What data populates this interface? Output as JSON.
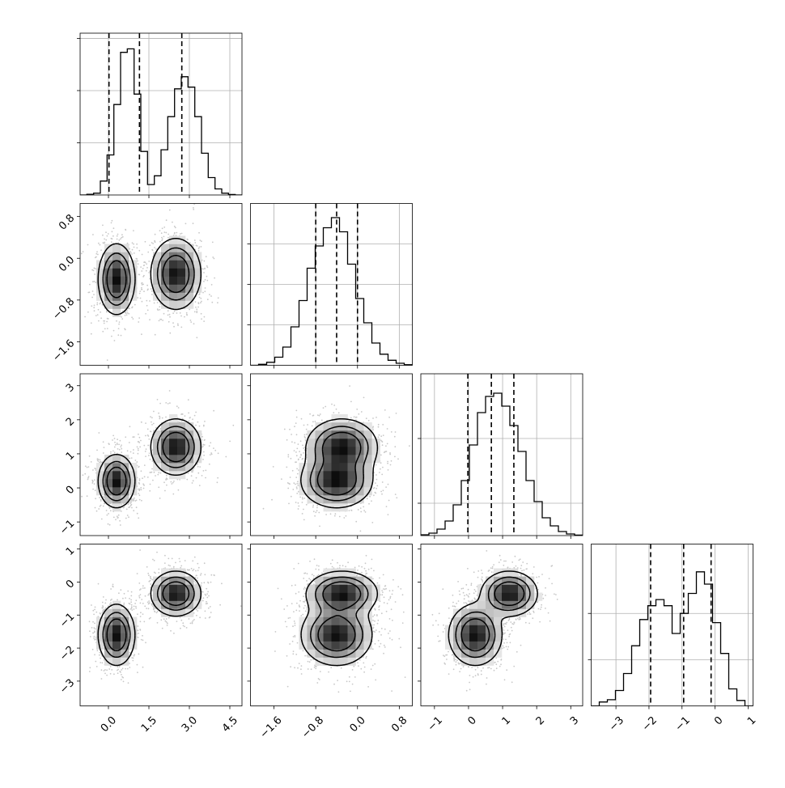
{
  "chart_data": {
    "type": "corner",
    "n_params": 4,
    "params": [
      {
        "range": [
          -1.05,
          4.95
        ],
        "ticks": [
          "0.0",
          "1.5",
          "3.0",
          "4.5"
        ],
        "tick_values": [
          0,
          1.5,
          3,
          4.5
        ],
        "quantile_lines": [
          0.02,
          1.15,
          2.72
        ],
        "hist_ylim": [
          0,
          930
        ],
        "hist_yticks": [
          300,
          600,
          900
        ],
        "hist_counts": [
          0,
          4,
          10,
          80,
          230,
          520,
          820,
          840,
          580,
          250,
          60,
          110,
          260,
          450,
          610,
          680,
          620,
          450,
          240,
          100,
          35,
          10,
          3,
          0
        ]
      },
      {
        "range": [
          -2.05,
          1.05
        ],
        "ticks": [
          "-1.6",
          "-0.8",
          "0.0",
          "0.8"
        ],
        "tick_values": [
          -1.6,
          -0.8,
          0.0,
          0.8
        ],
        "quantile_lines": [
          -0.8,
          -0.4,
          0.0
        ],
        "hist_ylim": [
          0,
          800
        ],
        "hist_yticks": [
          200,
          400,
          600
        ],
        "hist_counts": [
          0,
          5,
          15,
          40,
          90,
          190,
          320,
          480,
          590,
          680,
          730,
          660,
          500,
          330,
          210,
          110,
          55,
          25,
          10,
          3
        ]
      },
      {
        "range": [
          -1.4,
          3.35
        ],
        "ticks": [
          "-1",
          "0",
          "1",
          "2",
          "3"
        ],
        "tick_values": [
          -1,
          0,
          1,
          2,
          3
        ],
        "quantile_lines": [
          -0.02,
          0.67,
          1.33
        ],
        "hist_ylim": [
          0,
          1000
        ],
        "hist_yticks": [
          200,
          600
        ],
        "hist_counts": [
          5,
          15,
          40,
          90,
          190,
          340,
          560,
          760,
          860,
          880,
          800,
          680,
          520,
          340,
          210,
          110,
          60,
          25,
          10,
          3
        ]
      },
      {
        "range": [
          -3.75,
          1.15
        ],
        "ticks": [
          "-3",
          "-2",
          "-1",
          "0",
          "1"
        ],
        "tick_values": [
          -3,
          -2,
          -1,
          0,
          1
        ],
        "quantile_lines": [
          -1.95,
          -0.95,
          -0.12
        ],
        "hist_ylim": [
          0,
          1050
        ],
        "hist_yticks": [
          300,
          600
        ],
        "hist_counts": [
          0,
          25,
          40,
          100,
          210,
          390,
          560,
          650,
          690,
          650,
          470,
          600,
          730,
          870,
          790,
          540,
          340,
          110,
          35,
          0
        ]
      }
    ],
    "mixture_components": [
      {
        "weight": 0.5,
        "mean": [
          0.3,
          -0.4,
          0.2,
          -1.6
        ],
        "sd": [
          0.33,
          0.33,
          0.38,
          0.45
        ]
      },
      {
        "weight": 0.5,
        "mean": [
          2.5,
          -0.3,
          1.2,
          -0.35
        ],
        "sd": [
          0.45,
          0.33,
          0.4,
          0.33
        ]
      }
    ],
    "points_per_panel": 1400,
    "contour_levels": [
      0.12,
      0.32,
      0.56
    ],
    "grid": true,
    "colors": {
      "points": "#9a9a9a",
      "contour": "#000000",
      "hist": "#000000",
      "grid": "#b0b0b0"
    }
  }
}
